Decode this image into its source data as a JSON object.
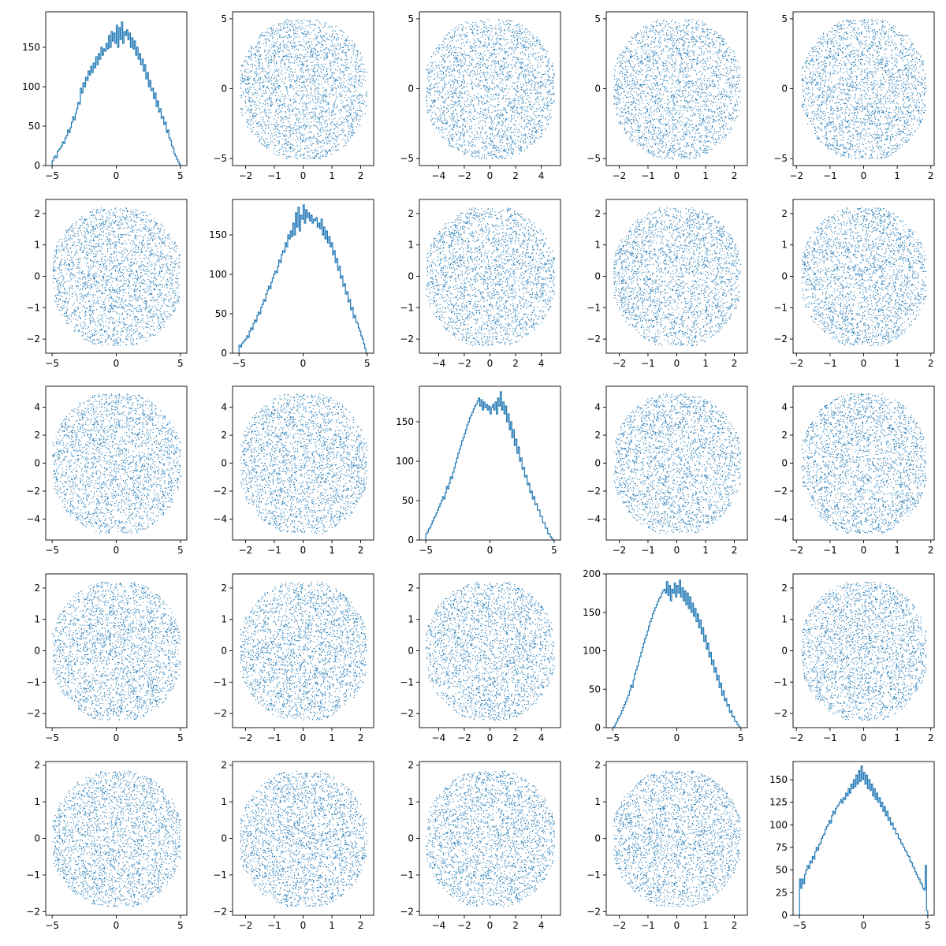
{
  "figure": {
    "type": "pairplot",
    "background": "#ffffff",
    "series_color": "#1f77b4",
    "grid": false,
    "rows": 5,
    "cols": 5
  },
  "chart_data": {
    "type": "scatter",
    "variables": [
      {
        "range": [
          -5,
          5
        ],
        "ticks": [
          -5,
          0,
          5
        ],
        "lim": [
          -5.5,
          5.5
        ],
        "tick_labels": [
          "−5",
          "0",
          "5"
        ]
      },
      {
        "range": [
          -2.2,
          2.2
        ],
        "ticks": [
          -2,
          -1,
          0,
          1,
          2
        ],
        "lim": [
          -2.45,
          2.45
        ],
        "tick_labels": [
          "−2",
          "−1",
          "0",
          "1",
          "2"
        ]
      },
      {
        "range": [
          -5,
          5
        ],
        "ticks": [
          -4,
          -2,
          0,
          2,
          4
        ],
        "lim": [
          -5.5,
          5.5
        ],
        "tick_labels": [
          "−4",
          "−2",
          "0",
          "2",
          "4"
        ]
      },
      {
        "range": [
          -2.2,
          2.2
        ],
        "ticks": [
          -2,
          -1,
          0,
          1,
          2
        ],
        "lim": [
          -2.45,
          2.45
        ],
        "tick_labels": [
          "−2",
          "−1",
          "0",
          "1",
          "2"
        ]
      },
      {
        "range": [
          -1.85,
          1.85
        ],
        "ticks": [
          -2,
          -1,
          0,
          1,
          2
        ],
        "lim": [
          -2.1,
          2.1
        ],
        "tick_labels": [
          "−2",
          "−1",
          "0",
          "1",
          "2"
        ]
      }
    ],
    "panels": [
      {
        "row": 0,
        "col": 0,
        "type": "histogram",
        "ylim": [
          0,
          195
        ],
        "yticks": [
          0,
          50,
          100,
          150
        ],
        "ytick_labels": [
          "0",
          "50",
          "100",
          "150"
        ],
        "xticks": [
          -5,
          0,
          5
        ],
        "xtick_labels": [
          "−5",
          "0",
          "5"
        ],
        "xlim": [
          -5.5,
          5.5
        ],
        "bins_x": [
          -5,
          5
        ],
        "counts": [
          6,
          10,
          12,
          10,
          18,
          20,
          22,
          25,
          30,
          28,
          35,
          38,
          45,
          42,
          48,
          55,
          62,
          58,
          66,
          72,
          80,
          78,
          98,
          92,
          105,
          100,
          112,
          108,
          120,
          115,
          126,
          118,
          130,
          124,
          138,
          128,
          142,
          135,
          150,
          140,
          148,
          145,
          155,
          148,
          165,
          150,
          170,
          158,
          168,
          155,
          178,
          150,
          175,
          160,
          182,
          155,
          170,
          165,
          172,
          160,
          168,
          150,
          162,
          148,
          158,
          140,
          150,
          135,
          142,
          128,
          135,
          120,
          128,
          110,
          118,
          100,
          108,
          95,
          98,
          85,
          92,
          75,
          82,
          68,
          72,
          60,
          62,
          52,
          55,
          42,
          45,
          35,
          32,
          25,
          22,
          15,
          12,
          8,
          5,
          2
        ]
      },
      {
        "row": 1,
        "col": 1,
        "type": "histogram",
        "ylim": [
          0,
          195
        ],
        "yticks": [
          0,
          50,
          100,
          150
        ],
        "ytick_labels": [
          "0",
          "50",
          "100",
          "150"
        ],
        "xticks": [
          -5,
          0,
          5
        ],
        "xtick_labels": [
          "−5",
          "0",
          "5"
        ],
        "xlim": [
          -5.5,
          5.5
        ],
        "bins_x": [
          -5,
          5
        ],
        "counts": [
          10,
          8,
          12,
          14,
          16,
          18,
          22,
          20,
          28,
          32,
          30,
          38,
          42,
          40,
          48,
          52,
          50,
          58,
          62,
          68,
          66,
          75,
          80,
          85,
          82,
          90,
          95,
          100,
          104,
          102,
          110,
          118,
          115,
          125,
          130,
          128,
          140,
          135,
          150,
          145,
          155,
          148,
          165,
          150,
          178,
          160,
          185,
          155,
          175,
          170,
          188,
          165,
          182,
          172,
          178,
          168,
          175,
          165,
          170,
          168,
          172,
          160,
          165,
          158,
          170,
          150,
          160,
          145,
          155,
          140,
          148,
          135,
          140,
          125,
          130,
          115,
          120,
          105,
          110,
          95,
          98,
          85,
          88,
          75,
          78,
          65,
          68,
          55,
          58,
          45,
          48,
          40,
          38,
          32,
          28,
          22,
          18,
          12,
          6,
          0
        ]
      },
      {
        "row": 2,
        "col": 2,
        "type": "histogram",
        "ylim": [
          0,
          195
        ],
        "yticks": [
          0,
          50,
          100,
          150
        ],
        "ytick_labels": [
          "0",
          "50",
          "100",
          "150"
        ],
        "xticks": [
          -5,
          0,
          5
        ],
        "xtick_labels": [
          "−5",
          "0",
          "5"
        ],
        "xlim": [
          -5.5,
          5.5
        ],
        "bins_x": [
          -5,
          5
        ],
        "counts": [
          8,
          10,
          14,
          16,
          20,
          24,
          28,
          30,
          34,
          38,
          42,
          46,
          50,
          55,
          52,
          60,
          68,
          65,
          72,
          80,
          78,
          86,
          92,
          98,
          104,
          110,
          115,
          120,
          126,
          130,
          135,
          140,
          146,
          150,
          155,
          158,
          162,
          166,
          170,
          172,
          176,
          180,
          170,
          178,
          165,
          175,
          168,
          172,
          165,
          170,
          160,
          168,
          172,
          165,
          175,
          160,
          180,
          170,
          188,
          165,
          175,
          160,
          170,
          150,
          160,
          140,
          150,
          130,
          140,
          120,
          128,
          110,
          118,
          100,
          104,
          90,
          92,
          80,
          82,
          70,
          72,
          60,
          62,
          52,
          55,
          45,
          46,
          38,
          38,
          30,
          30,
          22,
          22,
          15,
          15,
          8,
          8,
          4,
          2,
          0
        ]
      },
      {
        "row": 3,
        "col": 3,
        "type": "histogram",
        "ylim": [
          0,
          200
        ],
        "yticks": [
          0,
          50,
          100,
          150,
          200
        ],
        "ytick_labels": [
          "0",
          "50",
          "100",
          "150",
          "200"
        ],
        "xticks": [
          -5,
          0,
          5
        ],
        "xtick_labels": [
          "−5",
          "0",
          "5"
        ],
        "xlim": [
          -5.5,
          5.5
        ],
        "bins_x": [
          -5,
          5
        ],
        "counts": [
          0,
          2,
          5,
          8,
          12,
          15,
          18,
          22,
          26,
          30,
          34,
          38,
          42,
          48,
          55,
          52,
          62,
          70,
          75,
          80,
          86,
          92,
          98,
          104,
          110,
          116,
          120,
          126,
          132,
          138,
          142,
          148,
          152,
          156,
          160,
          164,
          168,
          170,
          175,
          178,
          180,
          175,
          190,
          172,
          185,
          165,
          180,
          175,
          188,
          170,
          185,
          175,
          192,
          170,
          182,
          165,
          178,
          160,
          175,
          155,
          170,
          150,
          162,
          145,
          155,
          138,
          148,
          130,
          140,
          122,
          130,
          112,
          120,
          102,
          110,
          92,
          98,
          82,
          88,
          72,
          78,
          62,
          68,
          52,
          58,
          42,
          48,
          35,
          38,
          28,
          30,
          20,
          22,
          14,
          15,
          8,
          8,
          4,
          2,
          0
        ]
      },
      {
        "row": 4,
        "col": 4,
        "type": "histogram",
        "ylim": [
          0,
          170
        ],
        "yticks": [
          0,
          25,
          50,
          75,
          100,
          125,
          150
        ],
        "ytick_labels": [
          "0",
          "25",
          "50",
          "75",
          "100",
          "125",
          "150"
        ],
        "xticks": [
          -5,
          0,
          5
        ],
        "xtick_labels": [
          "−5",
          "0",
          "5"
        ],
        "xlim": [
          -5.5,
          5.5
        ],
        "bins_x": [
          -5,
          5
        ],
        "counts": [
          40,
          30,
          40,
          35,
          45,
          50,
          55,
          52,
          60,
          58,
          65,
          62,
          70,
          75,
          72,
          78,
          80,
          85,
          88,
          90,
          95,
          98,
          100,
          105,
          102,
          110,
          115,
          112,
          118,
          120,
          122,
          125,
          128,
          124,
          130,
          128,
          135,
          132,
          140,
          135,
          145,
          140,
          150,
          142,
          155,
          145,
          160,
          148,
          165,
          150,
          158,
          145,
          155,
          140,
          150,
          138,
          145,
          132,
          140,
          128,
          135,
          125,
          130,
          120,
          125,
          115,
          120,
          110,
          115,
          105,
          108,
          100,
          102,
          95,
          96,
          90,
          90,
          85,
          84,
          80,
          78,
          75,
          72,
          70,
          66,
          65,
          60,
          58,
          54,
          52,
          48,
          45,
          42,
          40,
          36,
          34,
          30,
          28,
          55,
          5
        ]
      }
    ],
    "scatter_panels": "all off-diagonal panels: row variable on y-axis vs column variable on x-axis, ~10000 uniformly-distributed points in a disc-like region"
  }
}
